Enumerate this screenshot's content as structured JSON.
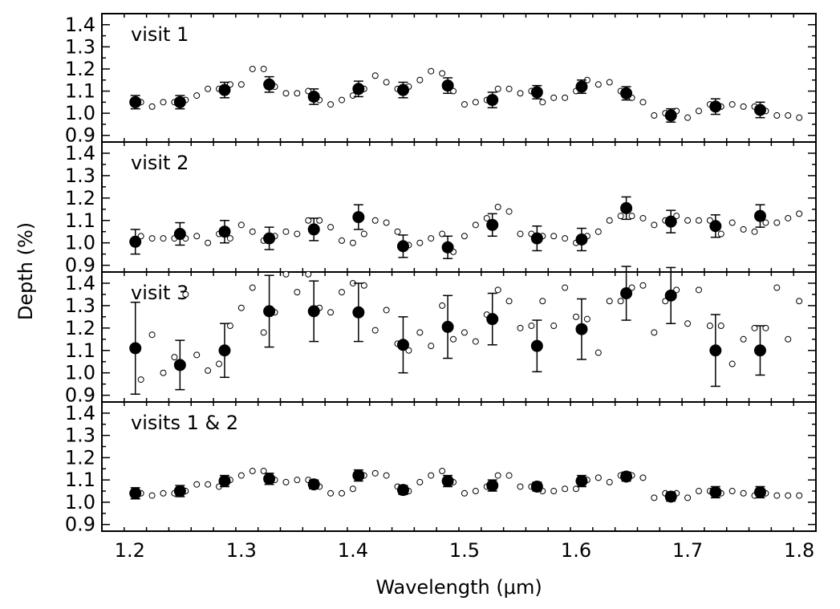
{
  "chart_data": {
    "type": "scatter",
    "title": "",
    "xlabel": "Wavelength (μm)",
    "ylabel": "Depth (%)",
    "xlim": [
      1.175,
      1.815
    ],
    "ylim": [
      0.87,
      1.45
    ],
    "x_ticks": [
      "1.2",
      "1.3",
      "1.4",
      "1.5",
      "1.6",
      "1.7",
      "1.8"
    ],
    "y_ticks": [
      "0.9",
      "1.0",
      "1.1",
      "1.2",
      "1.3",
      "1.4"
    ],
    "panels": [
      {
        "label": "visit 1",
        "binned": {
          "x": [
            1.205,
            1.245,
            1.285,
            1.325,
            1.365,
            1.405,
            1.445,
            1.485,
            1.525,
            1.565,
            1.605,
            1.645,
            1.685,
            1.725,
            1.765
          ],
          "y": [
            1.05,
            1.05,
            1.105,
            1.13,
            1.075,
            1.11,
            1.105,
            1.125,
            1.06,
            1.095,
            1.12,
            1.09,
            0.99,
            1.03,
            1.015
          ],
          "err": [
            0.03,
            0.03,
            0.035,
            0.035,
            0.035,
            0.035,
            0.035,
            0.035,
            0.035,
            0.03,
            0.03,
            0.03,
            0.03,
            0.035,
            0.035
          ]
        },
        "unbinned": {
          "x": [
            1.21,
            1.22,
            1.23,
            1.24,
            1.25,
            1.26,
            1.27,
            1.28,
            1.29,
            1.3,
            1.31,
            1.32,
            1.33,
            1.34,
            1.35,
            1.36,
            1.37,
            1.38,
            1.39,
            1.4,
            1.41,
            1.42,
            1.43,
            1.44,
            1.45,
            1.46,
            1.47,
            1.48,
            1.49,
            1.5,
            1.51,
            1.52,
            1.53,
            1.54,
            1.55,
            1.56,
            1.57,
            1.58,
            1.59,
            1.6,
            1.61,
            1.62,
            1.63,
            1.64,
            1.65,
            1.66,
            1.67,
            1.68,
            1.69,
            1.7,
            1.71,
            1.72,
            1.73,
            1.74,
            1.75,
            1.76,
            1.77,
            1.78,
            1.79,
            1.8
          ],
          "y": [
            1.05,
            1.03,
            1.05,
            1.05,
            1.06,
            1.08,
            1.11,
            1.11,
            1.13,
            1.13,
            1.2,
            1.2,
            1.12,
            1.09,
            1.09,
            1.1,
            1.06,
            1.04,
            1.06,
            1.08,
            1.11,
            1.17,
            1.14,
            1.11,
            1.12,
            1.15,
            1.19,
            1.18,
            1.1,
            1.04,
            1.05,
            1.06,
            1.11,
            1.11,
            1.09,
            1.1,
            1.05,
            1.07,
            1.07,
            1.1,
            1.15,
            1.13,
            1.14,
            1.1,
            1.07,
            1.05,
            0.99,
            1.0,
            1.01,
            0.98,
            1.01,
            1.04,
            1.03,
            1.04,
            1.03,
            1.03,
            1.01,
            0.99,
            0.99,
            0.98
          ]
        }
      },
      {
        "label": "visit 2",
        "binned": {
          "x": [
            1.205,
            1.245,
            1.285,
            1.325,
            1.365,
            1.405,
            1.445,
            1.485,
            1.525,
            1.565,
            1.605,
            1.645,
            1.685,
            1.725,
            1.765
          ],
          "y": [
            1.005,
            1.04,
            1.05,
            1.02,
            1.06,
            1.115,
            0.985,
            0.98,
            1.08,
            1.02,
            1.015,
            1.155,
            1.095,
            1.075,
            1.12
          ],
          "err": [
            0.055,
            0.05,
            0.05,
            0.05,
            0.05,
            0.055,
            0.05,
            0.05,
            0.05,
            0.055,
            0.05,
            0.05,
            0.05,
            0.05,
            0.05
          ]
        },
        "unbinned": {
          "x": [
            1.21,
            1.22,
            1.23,
            1.24,
            1.25,
            1.26,
            1.27,
            1.28,
            1.29,
            1.3,
            1.31,
            1.32,
            1.33,
            1.34,
            1.35,
            1.36,
            1.37,
            1.38,
            1.39,
            1.4,
            1.41,
            1.42,
            1.43,
            1.44,
            1.45,
            1.46,
            1.47,
            1.48,
            1.49,
            1.5,
            1.51,
            1.52,
            1.53,
            1.54,
            1.55,
            1.56,
            1.57,
            1.58,
            1.59,
            1.6,
            1.61,
            1.62,
            1.63,
            1.64,
            1.65,
            1.66,
            1.67,
            1.68,
            1.69,
            1.7,
            1.71,
            1.72,
            1.73,
            1.74,
            1.75,
            1.76,
            1.77,
            1.78,
            1.79,
            1.8
          ],
          "y": [
            1.03,
            1.02,
            1.02,
            1.02,
            1.02,
            1.03,
            1.0,
            1.04,
            1.02,
            1.08,
            1.05,
            1.01,
            1.03,
            1.05,
            1.04,
            1.1,
            1.1,
            1.07,
            1.01,
            1.0,
            1.04,
            1.1,
            1.09,
            1.05,
            0.99,
            1.0,
            1.02,
            1.04,
            0.96,
            1.03,
            1.08,
            1.11,
            1.16,
            1.14,
            1.04,
            1.04,
            1.03,
            1.03,
            1.02,
            1.0,
            1.03,
            1.05,
            1.1,
            1.12,
            1.12,
            1.11,
            1.08,
            1.1,
            1.12,
            1.1,
            1.1,
            1.1,
            1.04,
            1.09,
            1.06,
            1.05,
            1.09,
            1.09,
            1.11,
            1.13
          ]
        }
      },
      {
        "label": "visit 3",
        "binned": {
          "x": [
            1.205,
            1.245,
            1.285,
            1.325,
            1.365,
            1.405,
            1.445,
            1.485,
            1.525,
            1.565,
            1.605,
            1.645,
            1.685,
            1.725,
            1.765
          ],
          "y": [
            1.11,
            1.035,
            1.1,
            1.275,
            1.275,
            1.27,
            1.125,
            1.205,
            1.24,
            1.12,
            1.195,
            1.355,
            1.345,
            1.1,
            1.1
          ],
          "err": [
            0.205,
            0.11,
            0.12,
            0.16,
            0.135,
            0.13,
            0.125,
            0.14,
            0.115,
            0.115,
            0.135,
            0.12,
            0.125,
            0.16,
            0.11
          ]
        },
        "unbinned": {
          "x": [
            1.21,
            1.22,
            1.23,
            1.24,
            1.25,
            1.26,
            1.27,
            1.28,
            1.29,
            1.3,
            1.31,
            1.32,
            1.33,
            1.34,
            1.35,
            1.36,
            1.37,
            1.38,
            1.39,
            1.4,
            1.41,
            1.42,
            1.43,
            1.44,
            1.45,
            1.46,
            1.47,
            1.48,
            1.49,
            1.5,
            1.51,
            1.52,
            1.53,
            1.54,
            1.55,
            1.56,
            1.57,
            1.58,
            1.59,
            1.6,
            1.61,
            1.62,
            1.63,
            1.64,
            1.65,
            1.66,
            1.67,
            1.68,
            1.69,
            1.7,
            1.71,
            1.72,
            1.73,
            1.74,
            1.75,
            1.76,
            1.77,
            1.78,
            1.79,
            1.8
          ],
          "y": [
            0.97,
            1.17,
            1.0,
            1.07,
            1.35,
            1.08,
            1.01,
            1.04,
            1.21,
            1.29,
            1.38,
            1.18,
            1.27,
            1.44,
            1.36,
            1.44,
            1.29,
            1.27,
            1.36,
            1.4,
            1.39,
            1.19,
            1.28,
            1.13,
            1.1,
            1.18,
            1.12,
            1.3,
            1.15,
            1.18,
            1.14,
            1.26,
            1.37,
            1.32,
            1.2,
            1.21,
            1.32,
            1.21,
            1.38,
            1.25,
            1.24,
            1.09,
            1.32,
            1.32,
            1.38,
            1.39,
            1.18,
            1.32,
            1.37,
            1.22,
            1.37,
            1.21,
            1.21,
            1.04,
            1.15,
            1.2,
            1.2,
            1.38,
            1.15,
            1.32
          ]
        }
      },
      {
        "label": "visits 1 & 2",
        "binned": {
          "x": [
            1.205,
            1.245,
            1.285,
            1.325,
            1.365,
            1.405,
            1.445,
            1.485,
            1.525,
            1.565,
            1.605,
            1.645,
            1.685,
            1.725,
            1.765
          ],
          "y": [
            1.04,
            1.05,
            1.095,
            1.105,
            1.08,
            1.12,
            1.055,
            1.095,
            1.075,
            1.07,
            1.095,
            1.115,
            1.025,
            1.045,
            1.045
          ],
          "err": [
            0.025,
            0.025,
            0.025,
            0.025,
            0.02,
            0.025,
            0.02,
            0.025,
            0.025,
            0.02,
            0.025,
            0.02,
            0.02,
            0.025,
            0.025
          ]
        },
        "unbinned": {
          "x": [
            1.21,
            1.22,
            1.23,
            1.24,
            1.25,
            1.26,
            1.27,
            1.28,
            1.29,
            1.3,
            1.31,
            1.32,
            1.33,
            1.34,
            1.35,
            1.36,
            1.37,
            1.38,
            1.39,
            1.4,
            1.41,
            1.42,
            1.43,
            1.44,
            1.45,
            1.46,
            1.47,
            1.48,
            1.49,
            1.5,
            1.51,
            1.52,
            1.53,
            1.54,
            1.55,
            1.56,
            1.57,
            1.58,
            1.59,
            1.6,
            1.61,
            1.62,
            1.63,
            1.64,
            1.65,
            1.66,
            1.67,
            1.68,
            1.69,
            1.7,
            1.71,
            1.72,
            1.73,
            1.74,
            1.75,
            1.76,
            1.77,
            1.78,
            1.79,
            1.8
          ],
          "y": [
            1.04,
            1.03,
            1.04,
            1.04,
            1.05,
            1.08,
            1.08,
            1.07,
            1.1,
            1.12,
            1.14,
            1.14,
            1.1,
            1.09,
            1.1,
            1.1,
            1.07,
            1.04,
            1.04,
            1.06,
            1.12,
            1.13,
            1.12,
            1.07,
            1.05,
            1.09,
            1.12,
            1.14,
            1.09,
            1.04,
            1.05,
            1.07,
            1.12,
            1.12,
            1.07,
            1.07,
            1.05,
            1.05,
            1.06,
            1.06,
            1.1,
            1.11,
            1.09,
            1.12,
            1.12,
            1.11,
            1.02,
            1.04,
            1.04,
            1.02,
            1.05,
            1.05,
            1.04,
            1.05,
            1.04,
            1.03,
            1.04,
            1.03,
            1.03,
            1.03
          ]
        }
      }
    ]
  }
}
